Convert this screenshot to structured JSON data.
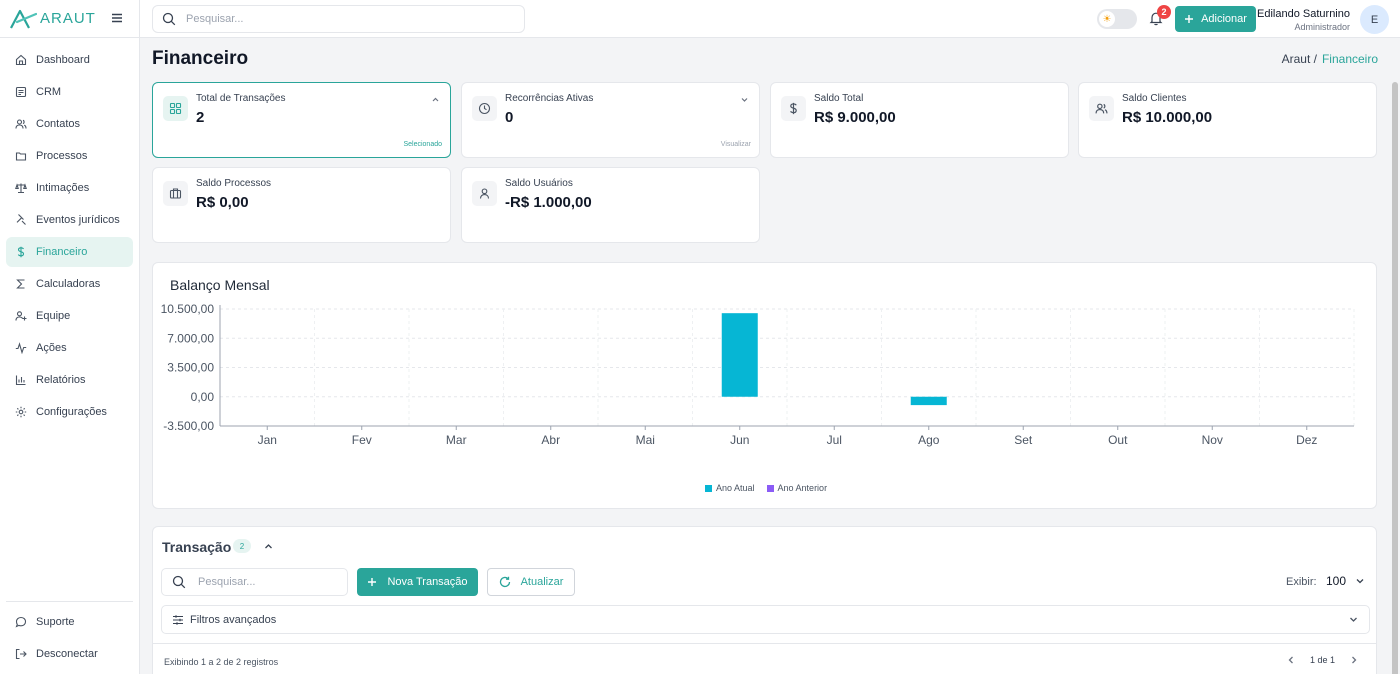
{
  "brand": {
    "name": "ARAUT"
  },
  "topbar": {
    "search_placeholder": "Pesquisar...",
    "notifications_count": "2",
    "add_label": "Adicionar",
    "user_name": "Edilando Saturnino",
    "user_role": "Administrador",
    "avatar_initial": "E"
  },
  "sidebar": {
    "items": [
      {
        "label": "Dashboard",
        "icon": "home-icon"
      },
      {
        "label": "CRM",
        "icon": "crm-icon"
      },
      {
        "label": "Contatos",
        "icon": "users-icon"
      },
      {
        "label": "Processos",
        "icon": "folder-icon"
      },
      {
        "label": "Intimações",
        "icon": "scale-icon"
      },
      {
        "label": "Eventos jurídicos",
        "icon": "gavel-icon"
      },
      {
        "label": "Financeiro",
        "icon": "dollar-icon",
        "active": true
      },
      {
        "label": "Calculadoras",
        "icon": "sigma-icon"
      },
      {
        "label": "Equipe",
        "icon": "user-plus-icon"
      },
      {
        "label": "Ações",
        "icon": "activity-icon"
      },
      {
        "label": "Relatórios",
        "icon": "bar-chart-icon"
      },
      {
        "label": "Configurações",
        "icon": "gear-icon"
      }
    ],
    "bottom": [
      {
        "label": "Suporte",
        "icon": "message-icon"
      },
      {
        "label": "Desconectar",
        "icon": "logout-icon"
      }
    ]
  },
  "page": {
    "title": "Financeiro",
    "breadcrumb_root": "Araut /",
    "breadcrumb_current": "Financeiro"
  },
  "stats": [
    {
      "label": "Total de Transações",
      "value": "2",
      "footer": "Selecionado",
      "icon": "grid-icon"
    },
    {
      "label": "Recorrências Ativas",
      "value": "0",
      "footer": "Visualizar",
      "icon": "clock-icon"
    },
    {
      "label": "Saldo Total",
      "value": "R$ 9.000,00",
      "icon": "dollar-icon"
    },
    {
      "label": "Saldo Clientes",
      "value": "R$ 10.000,00",
      "icon": "users-icon"
    },
    {
      "label": "Saldo Processos",
      "value": "R$ 0,00",
      "icon": "briefcase-icon"
    },
    {
      "label": "Saldo Usuários",
      "value": "-R$ 1.000,00",
      "icon": "user-icon"
    }
  ],
  "chart_data": {
    "type": "bar",
    "title": "Balanço Mensal",
    "categories": [
      "Jan",
      "Fev",
      "Mar",
      "Abr",
      "Mai",
      "Jun",
      "Jul",
      "Ago",
      "Set",
      "Out",
      "Nov",
      "Dez"
    ],
    "series": [
      {
        "name": "Ano Atual",
        "color": "#06b6d4",
        "values": [
          0,
          0,
          0,
          0,
          0,
          10000,
          0,
          -1000,
          0,
          0,
          0,
          0
        ]
      },
      {
        "name": "Ano Anterior",
        "color": "#8b5cf6",
        "values": [
          0,
          0,
          0,
          0,
          0,
          0,
          0,
          0,
          0,
          0,
          0,
          0
        ]
      }
    ],
    "ylim": [
      -3500,
      10500
    ],
    "yticks": [
      10500,
      7000,
      3500,
      0,
      -3500
    ],
    "ytick_labels": [
      "10.500,00",
      "7.000,00",
      "3.500,00",
      "0,00",
      "-3.500,00"
    ],
    "grid": true,
    "legend": "bottom"
  },
  "transactions": {
    "title": "Transação",
    "count": "2",
    "search_placeholder": "Pesquisar...",
    "new_label": "Nova Transação",
    "refresh_label": "Atualizar",
    "show_label": "Exibir:",
    "show_value": "100",
    "filters_label": "Filtros avançados",
    "records_text": "Exibindo 1 a 2 de 2 registros",
    "page_text": "1 de 1"
  },
  "colors": {
    "accent": "#2aa59a",
    "bar_current": "#06b6d4",
    "bar_previous": "#8b5cf6"
  }
}
